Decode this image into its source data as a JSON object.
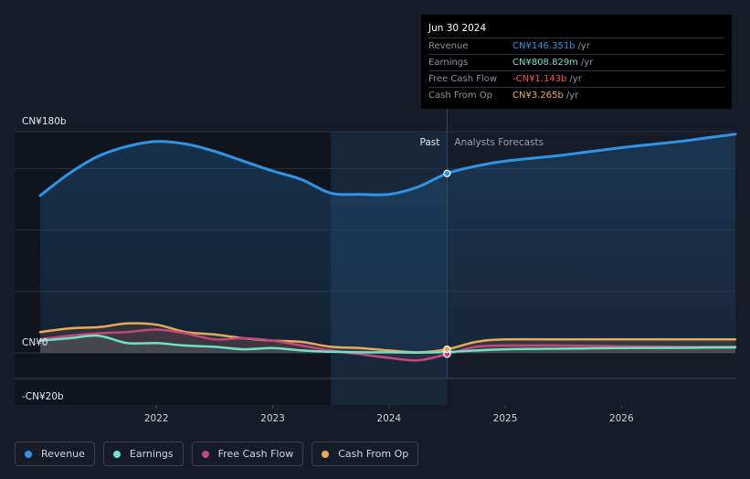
{
  "colors": {
    "revenue": "#2f94e6",
    "earnings": "#6fe2c6",
    "free_cash_flow": "#c1477e",
    "cash_from_op": "#e9a95a",
    "background": "#151b27"
  },
  "tooltip": {
    "date": "Jun 30 2024",
    "rows": [
      {
        "label": "Revenue",
        "value": "CN¥146.351b",
        "unit": "/yr",
        "color": "#2f94e6"
      },
      {
        "label": "Earnings",
        "value": "CN¥808.829m",
        "unit": "/yr",
        "color": "#6fe2c6"
      },
      {
        "label": "Free Cash Flow",
        "value": "-CN¥1.143b",
        "unit": "/yr",
        "color": "#ff4d4d"
      },
      {
        "label": "Cash From Op",
        "value": "CN¥3.265b",
        "unit": "/yr",
        "color": "#e9a95a"
      }
    ]
  },
  "legend": {
    "items": [
      {
        "label": "Revenue",
        "color": "#2f94e6"
      },
      {
        "label": "Earnings",
        "color": "#6fe2c6"
      },
      {
        "label": "Free Cash Flow",
        "color": "#c1477e"
      },
      {
        "label": "Cash From Op",
        "color": "#e9a95a"
      }
    ]
  },
  "chart_data": {
    "type": "line",
    "divider_labels": {
      "past": "Past",
      "forecast": "Analysts Forecasts"
    },
    "y_tick_labels": [
      {
        "value": 180,
        "label": "CN¥180b"
      },
      {
        "value": 0,
        "label": "CN¥0"
      },
      {
        "value": -20,
        "label": "-CN¥20b"
      }
    ],
    "x_tick_labels": [
      {
        "value": 2022.0,
        "label": "2022"
      },
      {
        "value": 2023.0,
        "label": "2023"
      },
      {
        "value": 2024.0,
        "label": "2024"
      },
      {
        "value": 2025.0,
        "label": "2025"
      },
      {
        "value": 2026.0,
        "label": "2026"
      }
    ],
    "xlim": [
      2020.78,
      2026.98
    ],
    "ylim": [
      -20,
      180
    ],
    "past_end": 2024.5,
    "highlight_start": 2023.5,
    "grid": true,
    "series": [
      {
        "name": "Revenue",
        "key": "revenue",
        "x": [
          2021.0,
          2021.25,
          2021.5,
          2021.75,
          2022.0,
          2022.25,
          2022.5,
          2022.75,
          2023.0,
          2023.25,
          2023.5,
          2023.75,
          2024.0,
          2024.25,
          2024.5,
          2024.75,
          2025.0,
          2025.5,
          2026.0,
          2026.5,
          2026.98
        ],
        "y": [
          128,
          146,
          160,
          168,
          172,
          170,
          164,
          156,
          148,
          141,
          130,
          129,
          129,
          135,
          146,
          152,
          156,
          161,
          167,
          172,
          178
        ]
      },
      {
        "name": "Earnings",
        "key": "earnings",
        "x": [
          2021.0,
          2021.25,
          2021.5,
          2021.75,
          2022.0,
          2022.25,
          2022.5,
          2022.75,
          2023.0,
          2023.25,
          2023.5,
          2023.75,
          2024.0,
          2024.25,
          2024.5,
          2024.75,
          2025.0,
          2025.5,
          2026.0,
          2026.5,
          2026.98
        ],
        "y": [
          10,
          12,
          14,
          8,
          8,
          6,
          5,
          3,
          4,
          2,
          1,
          0.5,
          0.5,
          0.3,
          0.8,
          2,
          3,
          3.5,
          4,
          4.2,
          4.5
        ]
      },
      {
        "name": "Free Cash Flow",
        "key": "free_cash_flow",
        "x": [
          2021.0,
          2021.25,
          2021.5,
          2021.75,
          2022.0,
          2022.25,
          2022.5,
          2022.75,
          2023.0,
          2023.25,
          2023.5,
          2023.75,
          2024.0,
          2024.25,
          2024.5,
          2024.75,
          2025.0,
          2025.5,
          2026.0,
          2026.5,
          2026.98
        ],
        "y": [
          11,
          14,
          16,
          17,
          19,
          16,
          11,
          12,
          10,
          6,
          2,
          -1,
          -4,
          -6,
          -1,
          5,
          6,
          6,
          5.5,
          5,
          5
        ]
      },
      {
        "name": "Cash From Op",
        "key": "cash_from_op",
        "x": [
          2021.0,
          2021.25,
          2021.5,
          2021.75,
          2022.0,
          2022.25,
          2022.5,
          2022.75,
          2023.0,
          2023.25,
          2023.5,
          2023.75,
          2024.0,
          2024.25,
          2024.5,
          2024.75,
          2025.0,
          2025.5,
          2026.0,
          2026.5,
          2026.98
        ],
        "y": [
          17,
          20,
          21,
          24,
          23,
          17,
          15,
          12,
          10,
          9,
          5,
          4,
          2,
          0.5,
          3,
          9,
          11,
          11,
          11,
          11,
          11
        ]
      }
    ],
    "tooltip_point": {
      "x": 2024.5
    }
  }
}
